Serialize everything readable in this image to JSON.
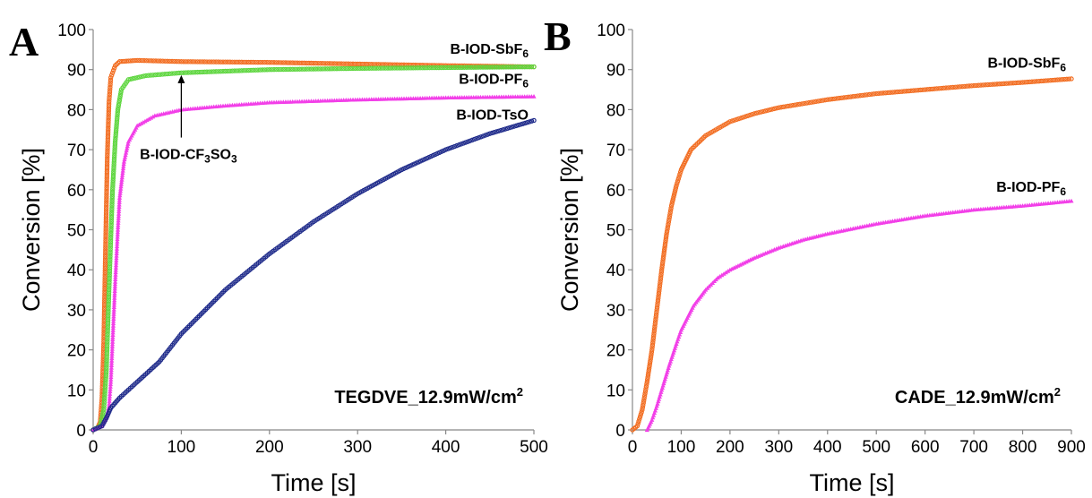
{
  "chart_data": [
    {
      "type": "scatter",
      "panel_letter": "A",
      "xlabel": "Time [s]",
      "ylabel": "Conversion  [%]",
      "xlim": [
        0,
        500
      ],
      "ylim": [
        0,
        100
      ],
      "xticks": [
        "0",
        "100",
        "200",
        "300",
        "400",
        "500"
      ],
      "yticks": [
        "0",
        "10",
        "20",
        "30",
        "40",
        "50",
        "60",
        "70",
        "80",
        "90",
        "100"
      ],
      "grid": false,
      "annotation": {
        "text": "TEGDVE_12.9mW/cm",
        "sup": "2"
      },
      "callout": {
        "text": "B-IOD-CF",
        "sub1": "3",
        "mid": "SO",
        "sub2": "3",
        "target": [
          100,
          89.5
        ],
        "label_at": [
          100,
          69
        ]
      },
      "series": [
        {
          "name": "B-IOD-SbF",
          "sub": "6",
          "color": "#f26d21",
          "marker": "circle",
          "label_at": [
            500,
            94
          ],
          "points": [
            [
              0,
              0
            ],
            [
              5,
              0.5
            ],
            [
              8,
              2
            ],
            [
              10,
              8
            ],
            [
              12,
              22
            ],
            [
              14,
              45
            ],
            [
              16,
              68
            ],
            [
              18,
              82
            ],
            [
              20,
              88
            ],
            [
              25,
              91
            ],
            [
              30,
              92
            ],
            [
              50,
              92.3
            ],
            [
              100,
              92
            ],
            [
              200,
              91.8
            ],
            [
              300,
              91.4
            ],
            [
              400,
              91
            ],
            [
              500,
              90.7
            ]
          ]
        },
        {
          "name": "B-IOD-PF",
          "sub": "6",
          "color": "#5ed63f",
          "marker": "circle",
          "label_at": [
            500,
            86.5
          ],
          "points": [
            [
              0,
              0
            ],
            [
              8,
              1
            ],
            [
              12,
              5
            ],
            [
              15,
              15
            ],
            [
              18,
              35
            ],
            [
              20,
              48
            ],
            [
              22,
              60
            ],
            [
              25,
              72
            ],
            [
              28,
              80
            ],
            [
              32,
              85
            ],
            [
              40,
              87.5
            ],
            [
              60,
              88.5
            ],
            [
              100,
              89.2
            ],
            [
              200,
              90
            ],
            [
              300,
              90.3
            ],
            [
              400,
              90.5
            ],
            [
              500,
              90.7
            ]
          ]
        },
        {
          "name": "B-IOD-TsO",
          "sub": "",
          "color": "#f23fe8",
          "marker": "triangle",
          "label_at": [
            500,
            77.5
          ],
          "points": [
            [
              0,
              0
            ],
            [
              10,
              1
            ],
            [
              15,
              3
            ],
            [
              18,
              6
            ],
            [
              20,
              12
            ],
            [
              22,
              22
            ],
            [
              25,
              37
            ],
            [
              28,
              50
            ],
            [
              30,
              58
            ],
            [
              35,
              67
            ],
            [
              40,
              72
            ],
            [
              50,
              76
            ],
            [
              70,
              78.5
            ],
            [
              100,
              80
            ],
            [
              150,
              81
            ],
            [
              200,
              81.8
            ],
            [
              300,
              82.5
            ],
            [
              400,
              83
            ],
            [
              500,
              83.3
            ]
          ]
        },
        {
          "name": "",
          "sub": "",
          "color": "#1e2a8a",
          "marker": "circle",
          "points": [
            [
              0,
              0
            ],
            [
              10,
              1
            ],
            [
              15,
              3
            ],
            [
              20,
              5.5
            ],
            [
              30,
              8
            ],
            [
              50,
              12
            ],
            [
              75,
              17
            ],
            [
              100,
              24
            ],
            [
              150,
              35
            ],
            [
              200,
              44
            ],
            [
              250,
              52
            ],
            [
              300,
              59
            ],
            [
              350,
              65
            ],
            [
              400,
              70
            ],
            [
              450,
              74
            ],
            [
              500,
              77.3
            ]
          ]
        }
      ]
    },
    {
      "type": "scatter",
      "panel_letter": "B",
      "xlabel": "Time [s]",
      "ylabel": "Conversion  [%]",
      "xlim": [
        0,
        900
      ],
      "ylim": [
        0,
        100
      ],
      "xticks": [
        "0",
        "100",
        "200",
        "300",
        "400",
        "500",
        "600",
        "700",
        "800",
        "900"
      ],
      "yticks": [
        "0",
        "10",
        "20",
        "30",
        "40",
        "50",
        "60",
        "70",
        "80",
        "90",
        "100"
      ],
      "grid": false,
      "annotation": {
        "text": "CADE_12.9mW/cm",
        "sup": "2"
      },
      "series": [
        {
          "name": "B-IOD-SbF",
          "sub": "6",
          "color": "#f26d21",
          "marker": "circle",
          "label_at": [
            900,
            90.5
          ],
          "points": [
            [
              0,
              0
            ],
            [
              10,
              1
            ],
            [
              20,
              5
            ],
            [
              30,
              12
            ],
            [
              40,
              20
            ],
            [
              50,
              30
            ],
            [
              60,
              40
            ],
            [
              70,
              49
            ],
            [
              80,
              56
            ],
            [
              90,
              61
            ],
            [
              100,
              65
            ],
            [
              120,
              70
            ],
            [
              150,
              73.5
            ],
            [
              200,
              77
            ],
            [
              250,
              79
            ],
            [
              300,
              80.5
            ],
            [
              400,
              82.5
            ],
            [
              500,
              84
            ],
            [
              600,
              85
            ],
            [
              700,
              86
            ],
            [
              800,
              86.8
            ],
            [
              900,
              87.7
            ]
          ]
        },
        {
          "name": "B-IOD-PF",
          "sub": "6",
          "color": "#f23fe8",
          "marker": "triangle",
          "label_at": [
            900,
            59.5
          ],
          "points": [
            [
              30,
              0
            ],
            [
              40,
              2.5
            ],
            [
              50,
              6
            ],
            [
              60,
              10
            ],
            [
              75,
              16
            ],
            [
              90,
              21.5
            ],
            [
              100,
              25
            ],
            [
              125,
              31
            ],
            [
              150,
              35
            ],
            [
              175,
              38
            ],
            [
              200,
              40
            ],
            [
              250,
              43
            ],
            [
              300,
              45.5
            ],
            [
              350,
              47.5
            ],
            [
              400,
              49
            ],
            [
              500,
              51.5
            ],
            [
              600,
              53.5
            ],
            [
              700,
              55
            ],
            [
              800,
              56
            ],
            [
              900,
              57.2
            ]
          ]
        }
      ]
    }
  ]
}
